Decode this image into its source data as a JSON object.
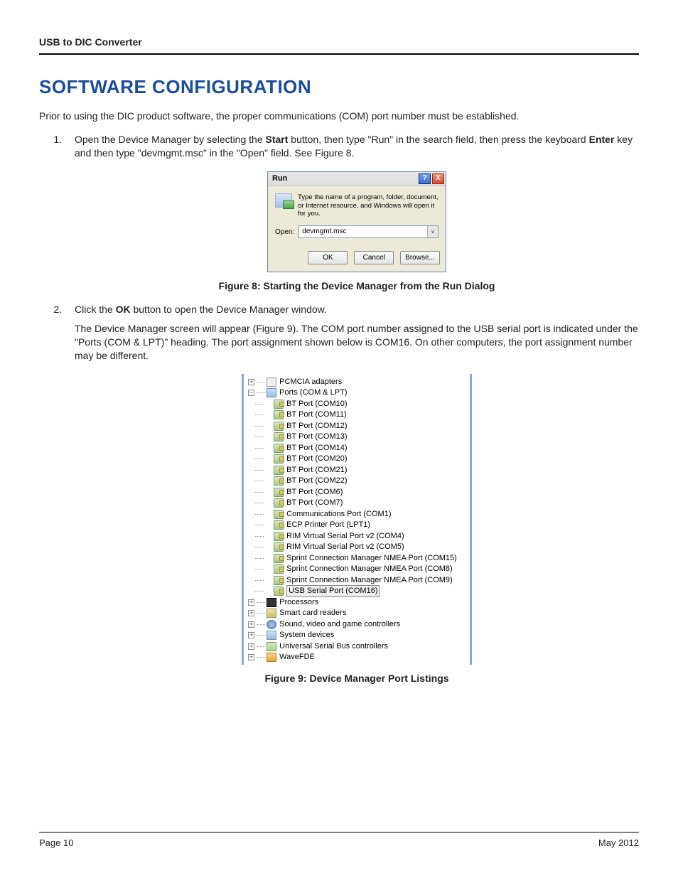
{
  "header": {
    "title": "USB to DIC Converter"
  },
  "section": {
    "heading": "Software Configuration"
  },
  "intro": "Prior to using the DIC product software, the proper communications (COM) port number must be established.",
  "steps": {
    "s1": {
      "pre": "Open the Device Manager by selecting the ",
      "b1": "Start",
      "mid1": " button, then type \"Run\" in the search field, then press the keyboard ",
      "b2": "Enter",
      "mid2": " key and then type \"devmgmt.msc\" in the \"Open\" field. See Figure 8."
    },
    "s2": {
      "pre": "Click the ",
      "b1": "OK",
      "post": " button to open the Device Manager window.",
      "para": "The Device Manager screen will appear (Figure 9). The COM port number assigned to the USB serial port is indicated under the \"Ports (COM & LPT)\" heading. The port assignment shown below is COM16. On other computers, the port assignment number may be different."
    }
  },
  "fig8": {
    "caption": "Figure 8:  Starting the Device Manager from the Run Dialog",
    "title": "Run",
    "help_glyph": "?",
    "close_glyph": "X",
    "desc": "Type the name of a program, folder, document, or Internet resource, and Windows will open it for you.",
    "open_label": "Open:",
    "open_value": "devmgmt.msc",
    "dropdown_glyph": "v",
    "btn_ok": "OK",
    "btn_cancel": "Cancel",
    "btn_browse": "Browse..."
  },
  "fig9": {
    "caption": "Figure 9:  Device Manager Port Listings",
    "top": [
      {
        "glyph": "+",
        "icon": "pcm",
        "label": "PCMCIA adapters"
      }
    ],
    "ports_node": {
      "glyph": "−",
      "icon": "ports",
      "label": "Ports (COM & LPT)"
    },
    "ports_children": [
      "BT Port (COM10)",
      "BT Port (COM11)",
      "BT Port (COM12)",
      "BT Port (COM13)",
      "BT Port (COM14)",
      "BT Port (COM20)",
      "BT Port (COM21)",
      "BT Port (COM22)",
      "BT Port (COM6)",
      "BT Port (COM7)",
      "Communications Port (COM1)",
      "ECP Printer Port (LPT1)",
      "RIM Virtual Serial Port v2 (COM4)",
      "RIM Virtual Serial Port v2 (COM5)",
      "Sprint Connection Manager NMEA Port (COM15)",
      "Sprint Connection Manager NMEA Port (COM8)",
      "Sprint Connection Manager NMEA Port (COM9)"
    ],
    "ports_selected": "USB Serial Port (COM16)",
    "bottom": [
      {
        "glyph": "+",
        "icon": "proc",
        "label": "Processors"
      },
      {
        "glyph": "+",
        "icon": "smart",
        "label": "Smart card readers"
      },
      {
        "glyph": "+",
        "icon": "sound",
        "label": "Sound, video and game controllers"
      },
      {
        "glyph": "+",
        "icon": "sys",
        "label": "System devices"
      },
      {
        "glyph": "+",
        "icon": "usb",
        "label": "Universal Serial Bus controllers"
      },
      {
        "glyph": "+",
        "icon": "wave",
        "label": "WaveFDE"
      }
    ]
  },
  "footer": {
    "page": "Page 10",
    "date": "May 2012"
  }
}
